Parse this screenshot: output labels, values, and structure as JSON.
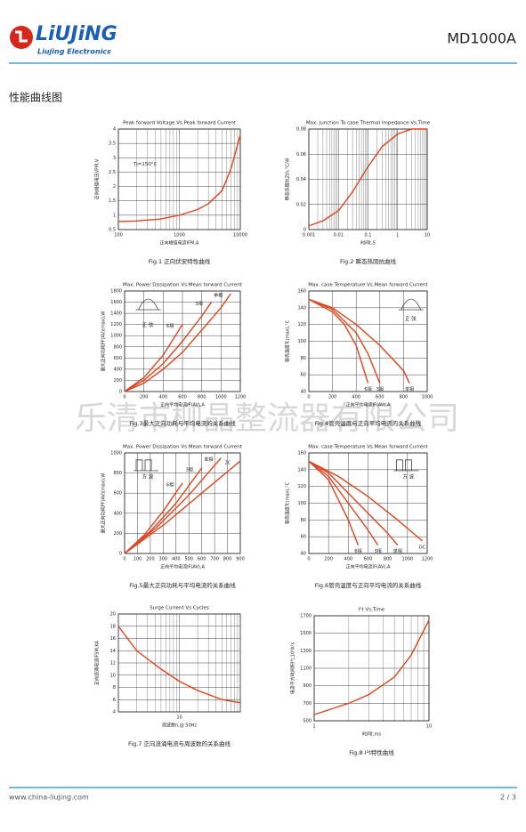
{
  "header": {
    "logo": "LiUJiNG",
    "company": "Liujing Electronics",
    "model": "MD1000A"
  },
  "section_title": "性能曲线图",
  "watermark": "乐清市柳晶整流器有限公司",
  "footer": {
    "url": "www.china-liujing.com",
    "page": "2 / 3"
  },
  "chart_data": [
    {
      "type": "line",
      "title": "Peak forward Voltage Vs.Peak forward Current",
      "xlabel": "正向峰值电流IFM,A",
      "ylabel": "正向峰值电压VFM,V",
      "caption": "Fig.1 正向伏安特性曲线",
      "xscale": "log",
      "xlim": [
        100,
        10000
      ],
      "xticks": [
        100,
        1000,
        10000
      ],
      "ylim": [
        0.5,
        4
      ],
      "yticks": [
        0.5,
        1,
        1.5,
        2,
        2.5,
        3,
        3.5,
        4
      ],
      "grid": true,
      "annotations": [
        "Tj=150°C"
      ],
      "series": [
        {
          "color": "#e0441c",
          "x": [
            100,
            200,
            500,
            1000,
            2000,
            3000,
            5000,
            7000,
            10000
          ],
          "values": [
            0.78,
            0.8,
            0.87,
            1.0,
            1.2,
            1.4,
            1.85,
            2.6,
            3.8
          ]
        }
      ]
    },
    {
      "type": "line",
      "title": "Max. junction To case Thermal Impedance Vs.Time",
      "xlabel": "时间t,S",
      "ylabel": "瞬态热阻抗Zth,°C/W",
      "caption": "Fig.2 瞬态热阻抗曲线",
      "xscale": "log",
      "xlim": [
        0.001,
        10
      ],
      "xticks": [
        0.001,
        0.01,
        0.1,
        1,
        10
      ],
      "ylim": [
        0,
        0.08
      ],
      "yticks": [
        0,
        0.02,
        0.04,
        0.06,
        0.08
      ],
      "grid": true,
      "annotations": [],
      "series": [
        {
          "color": "#e0441c",
          "x": [
            0.001,
            0.003,
            0.01,
            0.03,
            0.1,
            0.3,
            1,
            3,
            10
          ],
          "values": [
            0.003,
            0.007,
            0.015,
            0.03,
            0.05,
            0.066,
            0.076,
            0.08,
            0.08
          ]
        }
      ]
    },
    {
      "type": "line",
      "title": "Max. Power Dissipation Vs.Mean forward Current",
      "xlabel": "正向平均电流IF(AV),A",
      "ylabel": "最大正向功耗PF(AV)(max),W",
      "caption": "Fig.3最大正向功耗与平均电流的关系曲线",
      "xlim": [
        0,
        1200
      ],
      "xticks": [
        0,
        200,
        400,
        600,
        800,
        1000,
        1200
      ],
      "ylim": [
        0,
        1800
      ],
      "yticks": [
        0,
        200,
        400,
        600,
        800,
        1000,
        1200,
        1400,
        1600,
        1800
      ],
      "grid": true,
      "annotations": [
        "正 弦"
      ],
      "series": [
        {
          "name": "6相",
          "color": "#e0441c",
          "x": [
            0,
            200,
            400,
            600
          ],
          "values": [
            0,
            250,
            650,
            1200
          ]
        },
        {
          "name": "3相",
          "color": "#e0441c",
          "x": [
            0,
            200,
            400,
            600,
            800,
            900
          ],
          "values": [
            0,
            200,
            500,
            900,
            1350,
            1600
          ]
        },
        {
          "name": "单相",
          "color": "#e0441c",
          "x": [
            0,
            200,
            400,
            600,
            800,
            1000,
            1100
          ],
          "values": [
            0,
            150,
            400,
            700,
            1100,
            1500,
            1750
          ]
        }
      ]
    },
    {
      "type": "line",
      "title": "Max. case Temperature Vs.Mean forward Current",
      "xlabel": "正向平均电流IF(AV),A",
      "ylabel": "管壳温度Tc(max),°C",
      "caption": "Fig.4管壳温度与正向平均电流的关系曲线",
      "xlim": [
        0,
        1000
      ],
      "xticks": [
        0,
        200,
        400,
        600,
        800,
        1000
      ],
      "ylim": [
        40,
        160
      ],
      "yticks": [
        40,
        60,
        80,
        100,
        120,
        140,
        160
      ],
      "grid": true,
      "annotations": [
        "正 弦"
      ],
      "series": [
        {
          "name": "6相",
          "color": "#e0441c",
          "x": [
            0,
            200,
            300,
            400,
            500
          ],
          "values": [
            150,
            135,
            120,
            95,
            50
          ]
        },
        {
          "name": "3相",
          "color": "#e0441c",
          "x": [
            0,
            200,
            400,
            500,
            600
          ],
          "values": [
            150,
            138,
            110,
            85,
            50
          ]
        },
        {
          "name": "单相",
          "color": "#e0441c",
          "x": [
            0,
            200,
            400,
            600,
            800,
            850
          ],
          "values": [
            150,
            140,
            120,
            95,
            65,
            50
          ]
        }
      ]
    },
    {
      "type": "line",
      "title": "Max. Power Dissipation Vs.Mean forward Current",
      "xlabel": "正向平均电流IF(AV),A",
      "ylabel": "最大正向功耗PF(AV)(max),W",
      "caption": "Fig.5最大正向功耗与平均电流的关系曲线",
      "xlim": [
        0,
        900
      ],
      "xticks": [
        0,
        100,
        200,
        300,
        400,
        500,
        600,
        700,
        800,
        900
      ],
      "ylim": [
        0,
        1000
      ],
      "yticks": [
        0,
        200,
        400,
        600,
        800,
        1000
      ],
      "grid": true,
      "annotations": [
        "方 波"
      ],
      "series": [
        {
          "name": "6相",
          "color": "#e0441c",
          "x": [
            0,
            150,
            300,
            450
          ],
          "values": [
            0,
            180,
            420,
            700
          ]
        },
        {
          "name": "3相",
          "color": "#e0441c",
          "x": [
            0,
            200,
            400,
            600
          ],
          "values": [
            0,
            220,
            500,
            850
          ]
        },
        {
          "name": "单相",
          "color": "#e0441c",
          "x": [
            0,
            250,
            500,
            750
          ],
          "values": [
            0,
            260,
            580,
            950
          ]
        },
        {
          "name": "2C",
          "color": "#e0441c",
          "x": [
            0,
            300,
            600,
            900
          ],
          "values": [
            0,
            280,
            600,
            920
          ]
        }
      ]
    },
    {
      "type": "line",
      "title": "Max. case Temperature Vs.Mean forward Current",
      "xlabel": "正向平均电流IF(AV),A",
      "ylabel": "管壳温度Tc(max),°C",
      "caption": "Fig.6管壳温度与正向平均电流的关系曲线",
      "xlim": [
        0,
        1200
      ],
      "xticks": [
        0,
        200,
        400,
        600,
        800,
        1000,
        1200
      ],
      "ylim": [
        40,
        160
      ],
      "yticks": [
        40,
        60,
        80,
        100,
        120,
        140,
        160
      ],
      "grid": true,
      "annotations": [
        "方 波"
      ],
      "series": [
        {
          "name": "6相",
          "color": "#e0441c",
          "x": [
            0,
            200,
            400,
            500
          ],
          "values": [
            150,
            128,
            80,
            50
          ]
        },
        {
          "name": "3相",
          "color": "#e0441c",
          "x": [
            0,
            200,
            400,
            600,
            700
          ],
          "values": [
            150,
            132,
            100,
            68,
            50
          ]
        },
        {
          "name": "单相",
          "color": "#e0441c",
          "x": [
            0,
            200,
            400,
            600,
            800,
            900
          ],
          "values": [
            150,
            136,
            112,
            88,
            64,
            50
          ]
        },
        {
          "name": "DC",
          "color": "#e0441c",
          "x": [
            0,
            300,
            600,
            900,
            1150
          ],
          "values": [
            150,
            132,
            108,
            80,
            55
          ]
        }
      ]
    },
    {
      "type": "line",
      "title": "Surge Current Vs Cycles",
      "xlabel": "周波数n,@ 50Hz",
      "ylabel": "正向浪涌电流IFSM,KA",
      "caption": "Fig.7 正向浪涌电流与周波数的关系曲线",
      "xscale": "log",
      "xlim": [
        1,
        100
      ],
      "xticks": [
        10
      ],
      "ylim": [
        4,
        20
      ],
      "yticks": [
        4,
        6,
        8,
        10,
        12,
        14,
        16,
        18,
        20
      ],
      "grid": true,
      "annotations": [],
      "series": [
        {
          "color": "#e0441c",
          "x": [
            1,
            2,
            5,
            10,
            20,
            50,
            100
          ],
          "values": [
            18,
            14,
            11,
            9,
            7.5,
            6,
            5.5
          ]
        }
      ]
    },
    {
      "type": "line",
      "title": "I²t Vs.Time",
      "xlabel": "时间t,ms",
      "ylabel": "电流平方时间积I²t,10³A²s",
      "caption": "Fig.8 I²t特性曲线",
      "xscale": "log",
      "xlim": [
        1,
        10
      ],
      "xticks": [
        1,
        10
      ],
      "ylim": [
        500,
        1700
      ],
      "yticks": [
        500,
        700,
        900,
        1100,
        1300,
        1500,
        1700
      ],
      "grid": true,
      "annotations": [],
      "series": [
        {
          "color": "#e0441c",
          "x": [
            1,
            2,
            3,
            5,
            7,
            10
          ],
          "values": [
            570,
            700,
            800,
            1000,
            1250,
            1650
          ]
        }
      ]
    }
  ]
}
